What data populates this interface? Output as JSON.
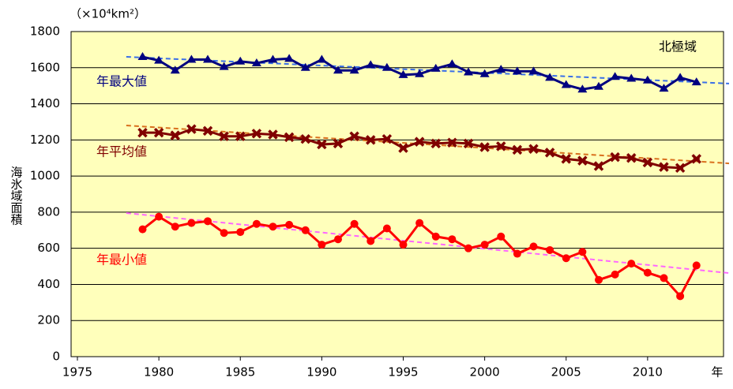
{
  "chart_data": {
    "type": "line",
    "unit_label": "（×10⁴km²）",
    "y_label": "海氷域面積",
    "x_unit": "年",
    "annotation": "北極域",
    "background": "#ffffbb",
    "grid": true,
    "xlim": [
      1975,
      2015
    ],
    "xticks": [
      1975,
      1980,
      1985,
      1990,
      1995,
      2000,
      2005,
      2010
    ],
    "ylim": [
      0,
      1800
    ],
    "yticks": [
      0,
      200,
      400,
      600,
      800,
      1000,
      1200,
      1400,
      1600,
      1800
    ],
    "x": [
      1979,
      1980,
      1981,
      1982,
      1983,
      1984,
      1985,
      1986,
      1987,
      1988,
      1989,
      1990,
      1991,
      1992,
      1993,
      1994,
      1995,
      1996,
      1997,
      1998,
      1999,
      2000,
      2001,
      2002,
      2003,
      2004,
      2005,
      2006,
      2007,
      2008,
      2009,
      2010,
      2011,
      2012,
      2013
    ],
    "series": [
      {
        "name": "年最大値",
        "color": "#000080",
        "marker": "triangle",
        "trend_color": "#3a6fe8",
        "values": [
          1660,
          1640,
          1585,
          1645,
          1645,
          1605,
          1635,
          1625,
          1645,
          1650,
          1600,
          1645,
          1585,
          1585,
          1615,
          1600,
          1560,
          1565,
          1595,
          1620,
          1575,
          1565,
          1590,
          1580,
          1580,
          1545,
          1505,
          1480,
          1495,
          1550,
          1540,
          1530,
          1485,
          1545,
          1520
        ],
        "trend": {
          "x": [
            1978,
            2015
          ],
          "values": [
            1660,
            1512
          ]
        }
      },
      {
        "name": "年平均値",
        "color": "#800000",
        "marker": "cross",
        "trend_color": "#d9701e",
        "values": [
          1240,
          1240,
          1225,
          1260,
          1250,
          1220,
          1220,
          1235,
          1230,
          1215,
          1205,
          1175,
          1180,
          1220,
          1200,
          1205,
          1155,
          1190,
          1180,
          1185,
          1180,
          1160,
          1165,
          1145,
          1150,
          1130,
          1095,
          1085,
          1055,
          1105,
          1100,
          1075,
          1050,
          1045,
          1095
        ],
        "trend": {
          "x": [
            1978,
            2015
          ],
          "values": [
            1280,
            1070
          ]
        }
      },
      {
        "name": "年最小値",
        "color": "#ff0000",
        "marker": "circle",
        "trend_color": "#ff66ff",
        "values": [
          705,
          775,
          720,
          740,
          750,
          685,
          690,
          735,
          720,
          730,
          700,
          620,
          650,
          735,
          640,
          710,
          620,
          740,
          665,
          650,
          600,
          620,
          665,
          570,
          610,
          590,
          545,
          580,
          425,
          455,
          515,
          465,
          435,
          335,
          505
        ],
        "trend": {
          "x": [
            1978,
            2015
          ],
          "values": [
            795,
            463
          ]
        }
      }
    ]
  }
}
